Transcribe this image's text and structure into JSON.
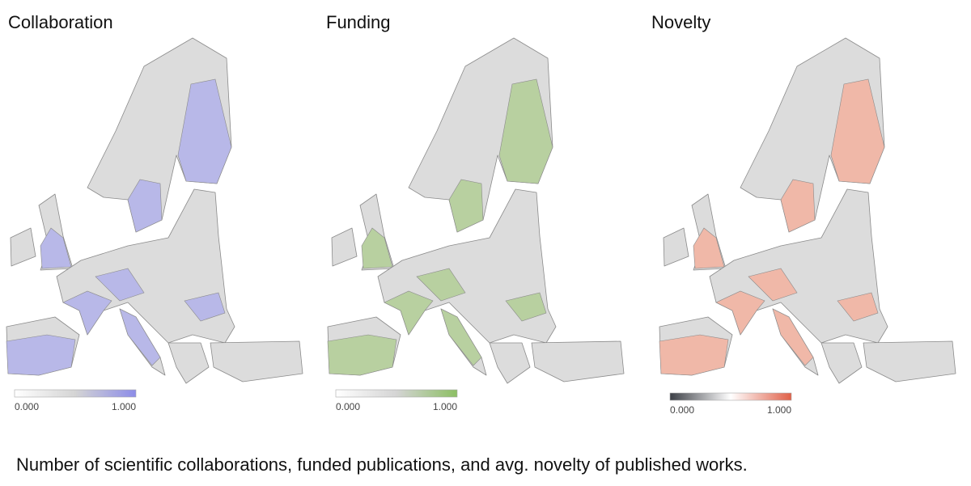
{
  "panels": [
    {
      "title": "Collaboration",
      "tint": "#b8b8e8",
      "legend": {
        "min_label": "0.000",
        "max_label": "1.000",
        "colors": [
          "#ffffff",
          "#d4d4d4",
          "#8c8ce8"
        ]
      }
    },
    {
      "title": "Funding",
      "tint": "#b8d0a0",
      "legend": {
        "min_label": "0.000",
        "max_label": "1.000",
        "colors": [
          "#ffffff",
          "#d4d4d4",
          "#8cbf63"
        ]
      }
    },
    {
      "title": "Novelty",
      "tint": "#f0b8a8",
      "legend": {
        "min_label": "0.000",
        "max_label": "1.000",
        "colors": [
          "#3c3f46",
          "#ffffff",
          "#e06048"
        ]
      }
    }
  ],
  "caption": "Number of scientific collaborations, funded publications, and avg. novelty of published works."
}
